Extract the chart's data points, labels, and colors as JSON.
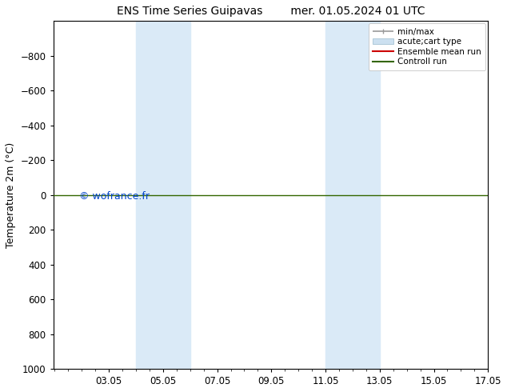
{
  "title": "ENS Time Series Guipavas",
  "title2": "mer. 01.05.2024 01 UTC",
  "ylabel": "Temperature 2m (°C)",
  "xlim": [
    1.0,
    17.05
  ],
  "ylim_bottom": 1000,
  "ylim_top": -1000,
  "yticks": [
    -800,
    -600,
    -400,
    -200,
    0,
    200,
    400,
    600,
    800,
    1000
  ],
  "xticks": [
    3.05,
    5.05,
    7.05,
    9.05,
    11.05,
    13.05,
    15.05,
    17.05
  ],
  "xtick_labels": [
    "03.05",
    "05.05",
    "07.05",
    "09.05",
    "11.05",
    "13.05",
    "15.05",
    "17.05"
  ],
  "background_color": "#ffffff",
  "plot_bg_color": "#ffffff",
  "shaded_regions": [
    {
      "xmin": 4.05,
      "xmax": 6.05,
      "color": "#daeaf7"
    },
    {
      "xmin": 11.05,
      "xmax": 13.05,
      "color": "#daeaf7"
    }
  ],
  "hline_y": 0,
  "hline_color": "#336600",
  "hline_linewidth": 1.0,
  "watermark": "© wofrance.fr",
  "watermark_color": "#0044cc",
  "watermark_fontsize": 9,
  "legend_fontsize": 7.5,
  "tick_fontsize": 8.5,
  "ylabel_fontsize": 9,
  "title_fontsize": 10,
  "minmax_color": "#999999",
  "cart_facecolor": "#cce0f0",
  "ensemble_mean_color": "#cc0000",
  "control_run_color": "#336600"
}
